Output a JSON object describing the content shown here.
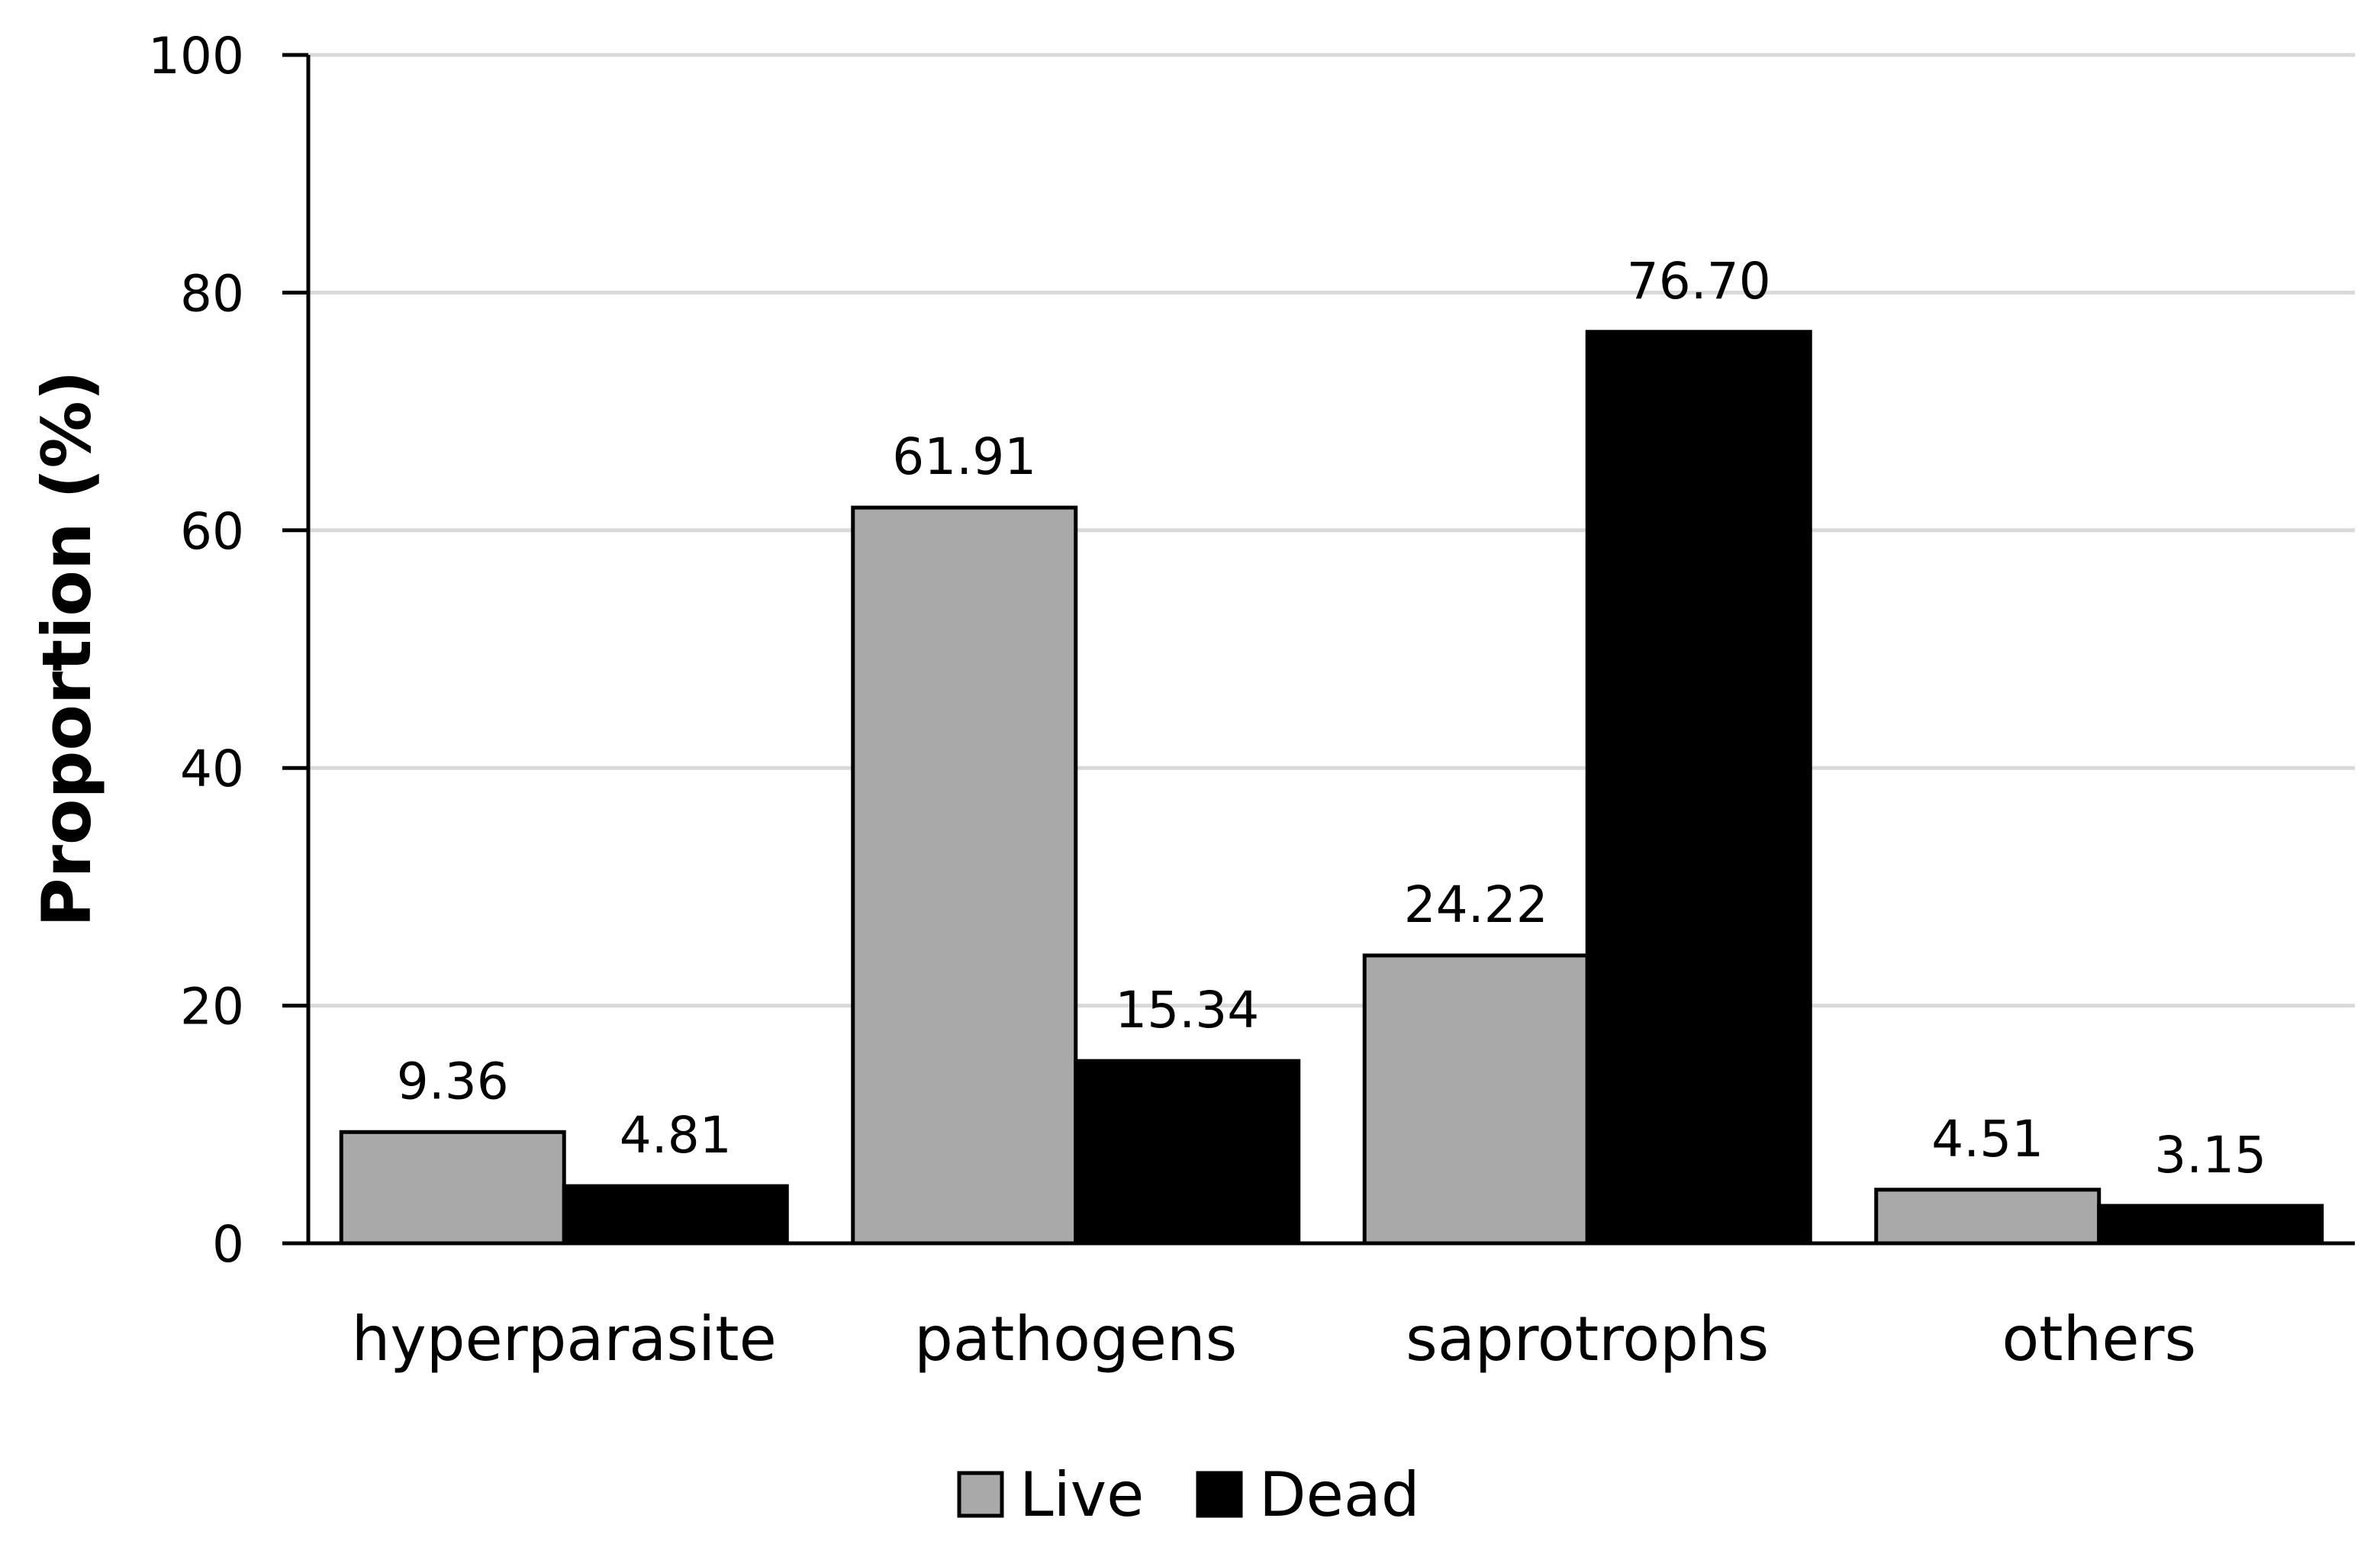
{
  "chart_data": {
    "type": "bar",
    "title": "",
    "xlabel": "",
    "ylabel": "Proportion (%)",
    "ylim": [
      0,
      100
    ],
    "yticks": [
      0,
      20,
      40,
      60,
      80,
      100
    ],
    "grid": true,
    "legend_position": "bottom-center",
    "categories": [
      "hyperparasite",
      "pathogens",
      "saprotrophs",
      "others"
    ],
    "series": [
      {
        "name": "Live",
        "color": "#a9a9a9",
        "values": [
          9.36,
          61.91,
          24.22,
          4.51
        ],
        "labels": [
          "9.36",
          "61.91",
          "24.22",
          "4.51"
        ]
      },
      {
        "name": "Dead",
        "color": "#000000",
        "values": [
          4.81,
          15.34,
          76.7,
          3.15
        ],
        "labels": [
          "4.81",
          "15.34",
          "76.70",
          "3.15"
        ]
      }
    ]
  }
}
